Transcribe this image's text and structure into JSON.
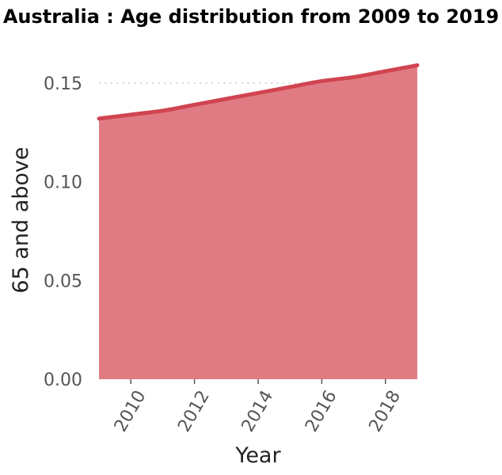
{
  "chart_data": {
    "type": "area",
    "title": "Australia : Age distribution from 2009 to 2019",
    "xlabel": "Year",
    "ylabel": "65 and above",
    "x": [
      2009,
      2010,
      2011,
      2012,
      2013,
      2014,
      2015,
      2016,
      2017,
      2018,
      2019
    ],
    "series": [
      {
        "values": [
          0.132,
          0.134,
          0.136,
          0.139,
          0.142,
          0.145,
          0.148,
          0.151,
          0.153,
          0.156,
          0.159
        ]
      }
    ],
    "xlim": [
      2009,
      2019
    ],
    "ylim": [
      0,
      0.16
    ],
    "x_ticks": [
      2010,
      2012,
      2014,
      2016,
      2018
    ],
    "x_tick_labels": [
      "2010",
      "2012",
      "2014",
      "2016",
      "2018"
    ],
    "y_ticks": [
      0,
      0.05,
      0.1,
      0.15
    ],
    "y_tick_labels": [
      "0.00",
      "0.05",
      "0.10",
      "0.15"
    ],
    "grid": "horizontal dotted",
    "colors": {
      "fill": "#e07b83",
      "line": "#d04450",
      "grid": "#bbbbbb",
      "tick_text": "#555555"
    }
  }
}
